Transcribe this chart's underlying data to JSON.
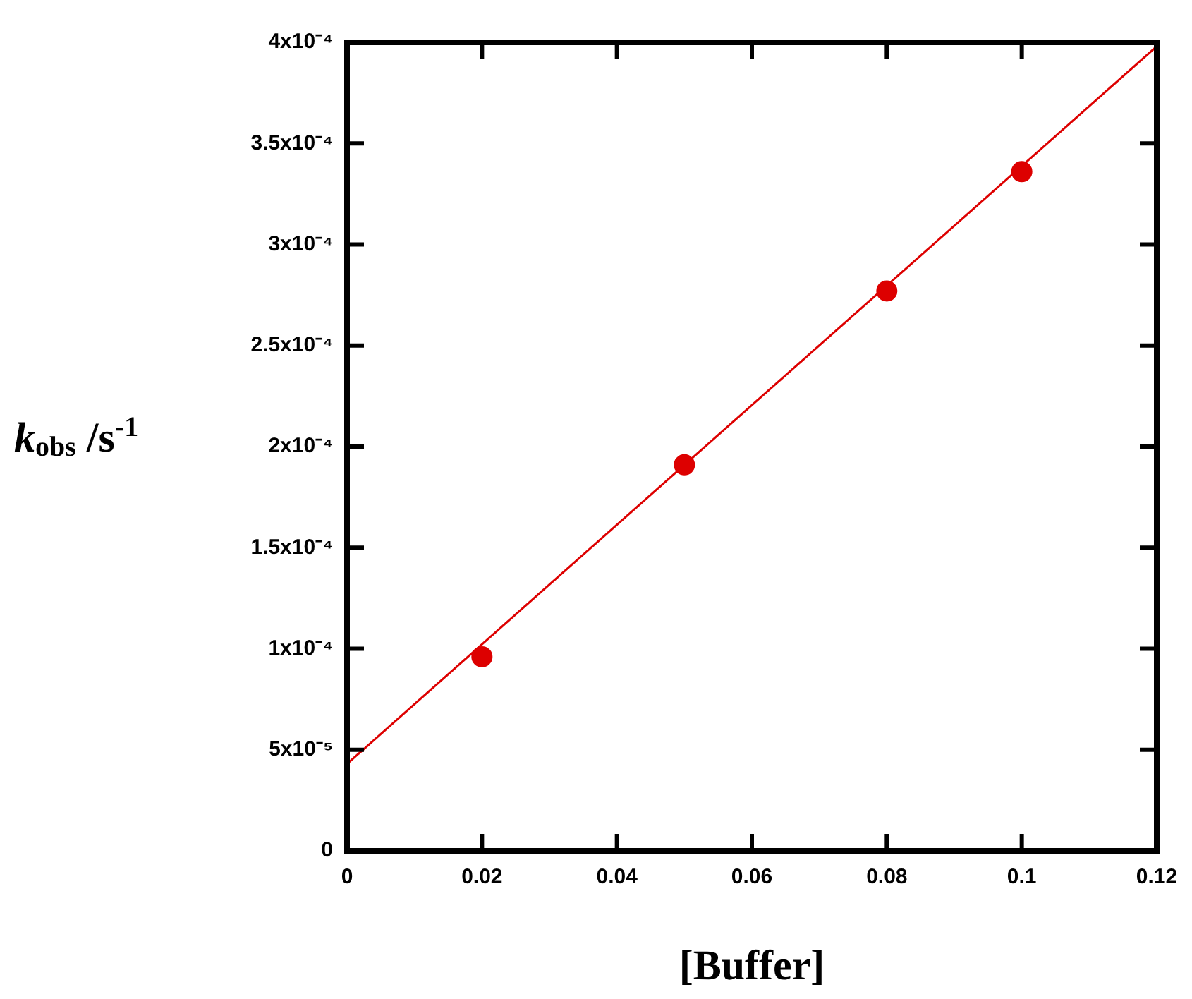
{
  "chart_data": {
    "type": "scatter",
    "xlabel": "[Buffer]",
    "ylabel": "k$_{obs}$ /s$^{-1}$",
    "x": [
      0.02,
      0.05,
      0.08,
      0.1
    ],
    "series": [
      {
        "color": "#dd0000",
        "values": [
          9.6e-05,
          0.000191,
          0.000277,
          0.000336
        ],
        "marker": "circle"
      },
      {
        "type": "line",
        "color": "#dd0000",
        "x": [
          0,
          0.12
        ],
        "values": [
          4.3e-05,
          0.000398
        ],
        "marker": "none",
        "line_style": "solid"
      }
    ],
    "xlim": [
      0,
      0.12
    ],
    "xticks": [
      0,
      0.02,
      0.04,
      0.06,
      0.08,
      0.1,
      0.12
    ],
    "ylim": [
      0,
      0.0004
    ],
    "yticks": [
      0,
      {
        "value": 5e-05,
        "label": "5x10⁻⁵"
      },
      {
        "value": 0.0001,
        "label": "1x10⁻⁴"
      },
      {
        "value": 0.00015,
        "label": "1.5x10⁻⁴"
      },
      {
        "value": 0.0002,
        "label": "2x10⁻⁴"
      },
      {
        "value": 0.00025,
        "label": "2.5x10⁻⁴"
      },
      {
        "value": 0.0003,
        "label": "3x10⁻⁴"
      },
      {
        "value": 0.00035,
        "label": "3.5x10⁻⁴"
      },
      {
        "value": 0.0004,
        "label": "4x10⁻⁴"
      }
    ],
    "grid": false,
    "legend": false
  }
}
